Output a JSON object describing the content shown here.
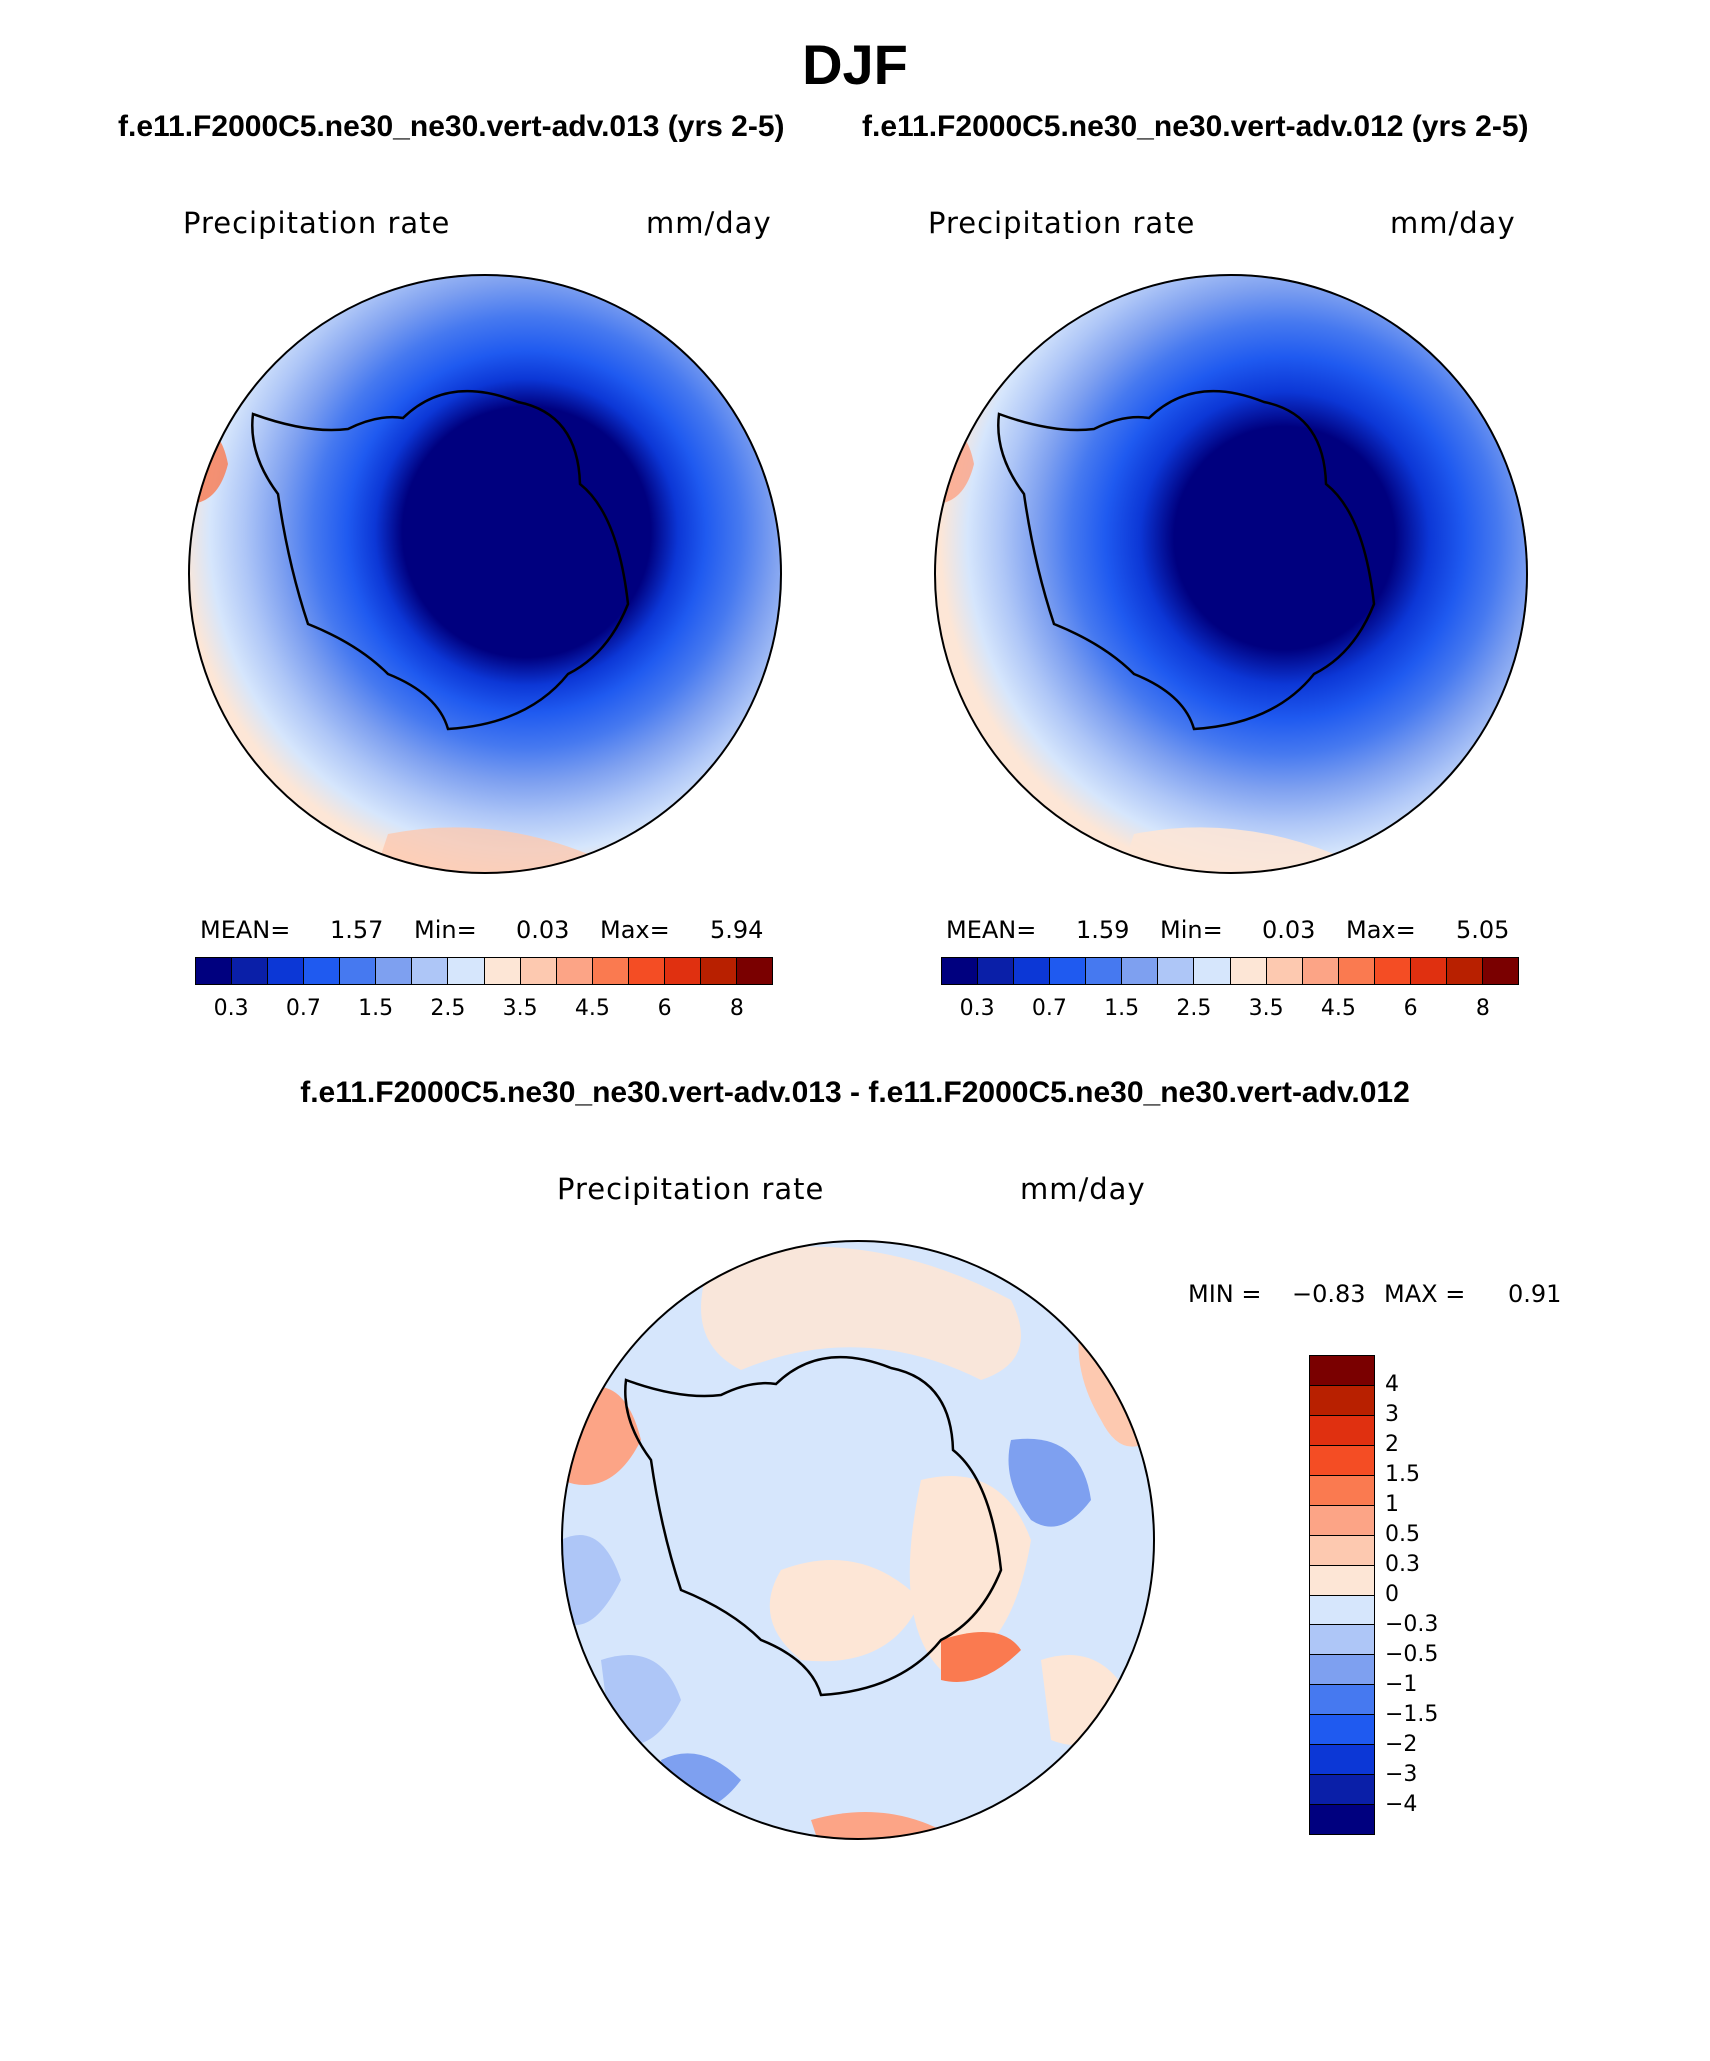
{
  "title": "DJF",
  "case_titles": {
    "left": "f.e11.F2000C5.ne30_ne30.vert-adv.013 (yrs 2-5)",
    "right": "f.e11.F2000C5.ne30_ne30.vert-adv.012 (yrs 2-5)"
  },
  "diff_title": "f.e11.F2000C5.ne30_ne30.vert-adv.013 - f.e11.F2000C5.ne30_ne30.vert-adv.012",
  "panels": {
    "left": {
      "variable": "Precipitation rate",
      "units": "mm/day",
      "mean_label": "MEAN=",
      "mean": "1.57",
      "min_label": "Min=",
      "min": "0.03",
      "max_label": "Max=",
      "max": "5.94"
    },
    "right": {
      "variable": "Precipitation rate",
      "units": "mm/day",
      "mean_label": "MEAN=",
      "mean": "1.59",
      "min_label": "Min=",
      "min": "0.03",
      "max_label": "Max=",
      "max": "5.05"
    },
    "diff": {
      "variable": "Precipitation rate",
      "units": "mm/day",
      "min_label": "MIN =",
      "min": "−0.83",
      "max_label": "MAX =",
      "max": "0.91"
    }
  },
  "colorbar_abs": {
    "ticks": [
      "0.3",
      "0.7",
      "1.5",
      "2.5",
      "3.5",
      "4.5",
      "6",
      "8"
    ],
    "colors": [
      "#00007f",
      "#0a1fa8",
      "#0c37d6",
      "#1f5af0",
      "#4679f0",
      "#7ea0f0",
      "#aec6f7",
      "#d6e6fc",
      "#fde6d6",
      "#fdc9b0",
      "#fca486",
      "#fa7a50",
      "#f44d24",
      "#e03010",
      "#b82000",
      "#7a0000"
    ]
  },
  "colorbar_diff": {
    "ticks": [
      "4",
      "3",
      "2",
      "1.5",
      "1",
      "0.5",
      "0.3",
      "0",
      "−0.3",
      "−0.5",
      "−1",
      "−1.5",
      "−2",
      "−3",
      "−4"
    ],
    "colors": [
      "#7a0000",
      "#b82000",
      "#e03010",
      "#f44d24",
      "#fa7a50",
      "#fca486",
      "#fdc9b0",
      "#fde6d6",
      "#d6e6fc",
      "#aec6f7",
      "#7ea0f0",
      "#4679f0",
      "#1f5af0",
      "#0c37d6",
      "#0a1fa8",
      "#00007f"
    ]
  }
}
